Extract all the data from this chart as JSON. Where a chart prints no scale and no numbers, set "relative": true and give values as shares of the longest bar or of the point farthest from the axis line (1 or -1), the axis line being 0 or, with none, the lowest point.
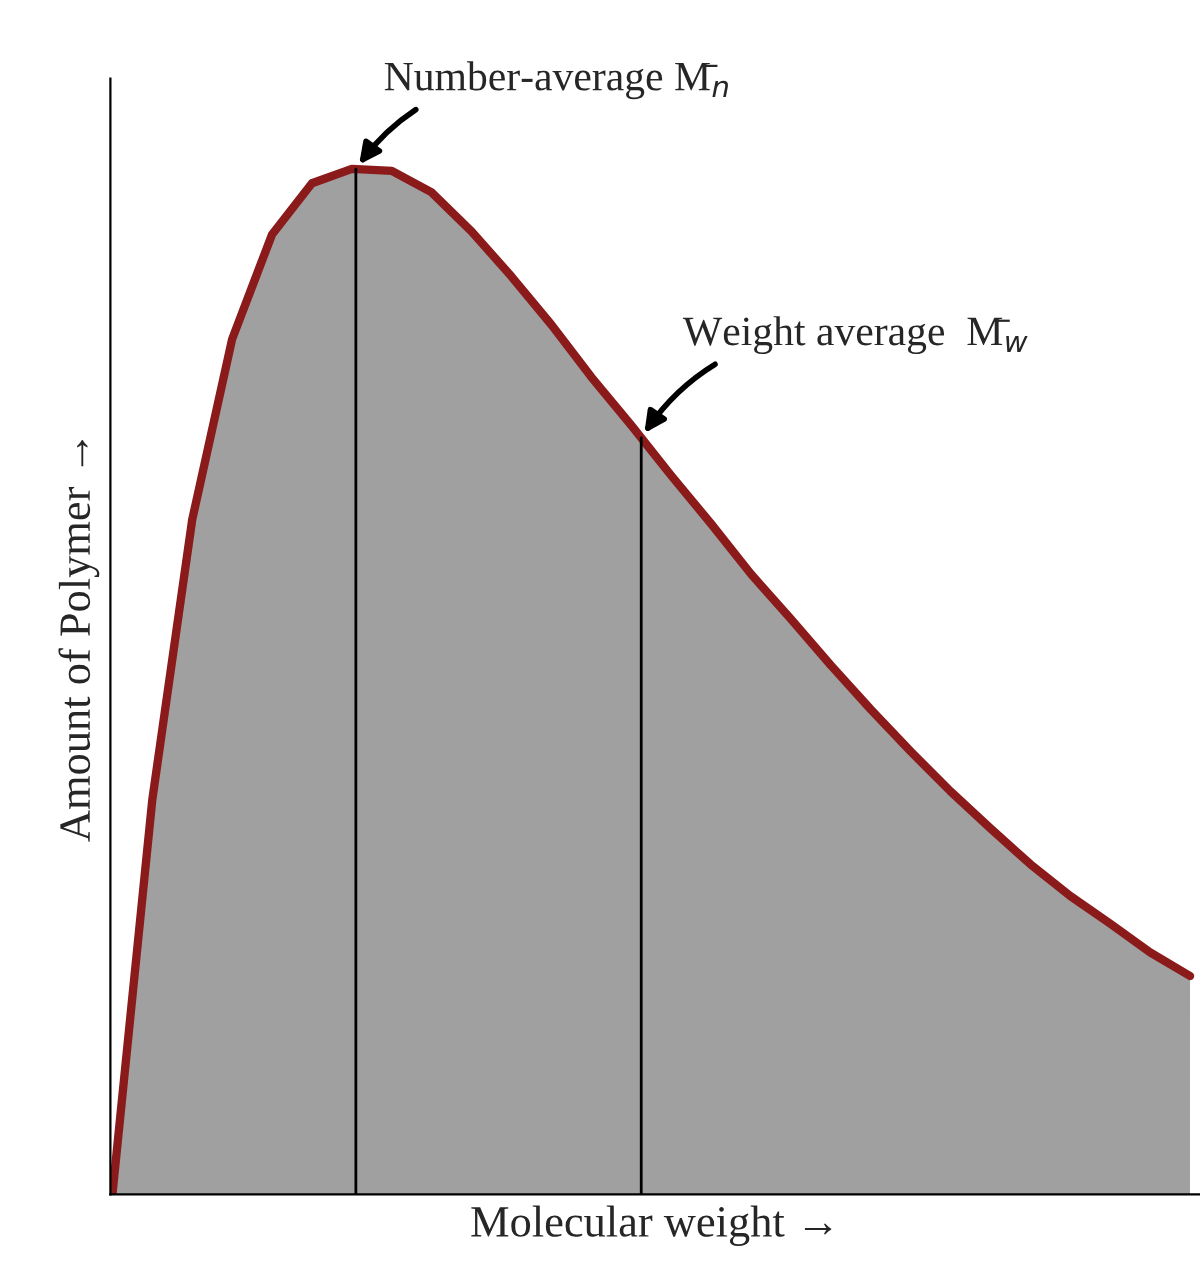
{
  "chart_data": {
    "type": "area",
    "relative": true,
    "xlabel": "Molecular weight →",
    "ylabel": "Amount of Polymer →",
    "categories": [
      null,
      null,
      null,
      null,
      null,
      null,
      null,
      null,
      null,
      null,
      null,
      null,
      null,
      null,
      null,
      null,
      null,
      null,
      null,
      null,
      null,
      null,
      null,
      null,
      null,
      null,
      null,
      null
    ],
    "series": [
      {
        "color": "#a0a0a0",
        "values": [
          0,
          0.385,
          0.658,
          0.834,
          0.936,
          0.986,
          1,
          0.998,
          0.977,
          0.939,
          0.895,
          0.848,
          0.797,
          0.75,
          0.701,
          0.654,
          0.605,
          0.561,
          0.516,
          0.473,
          0.432,
          0.393,
          0.357,
          0.322,
          0.291,
          0.264,
          0.236,
          0.213
        ]
      }
    ],
    "annotations": [
      "Number-average M̄$_{n}$",
      "Weight average  M̄$_{w}$"
    ],
    "legend": false
  }
}
